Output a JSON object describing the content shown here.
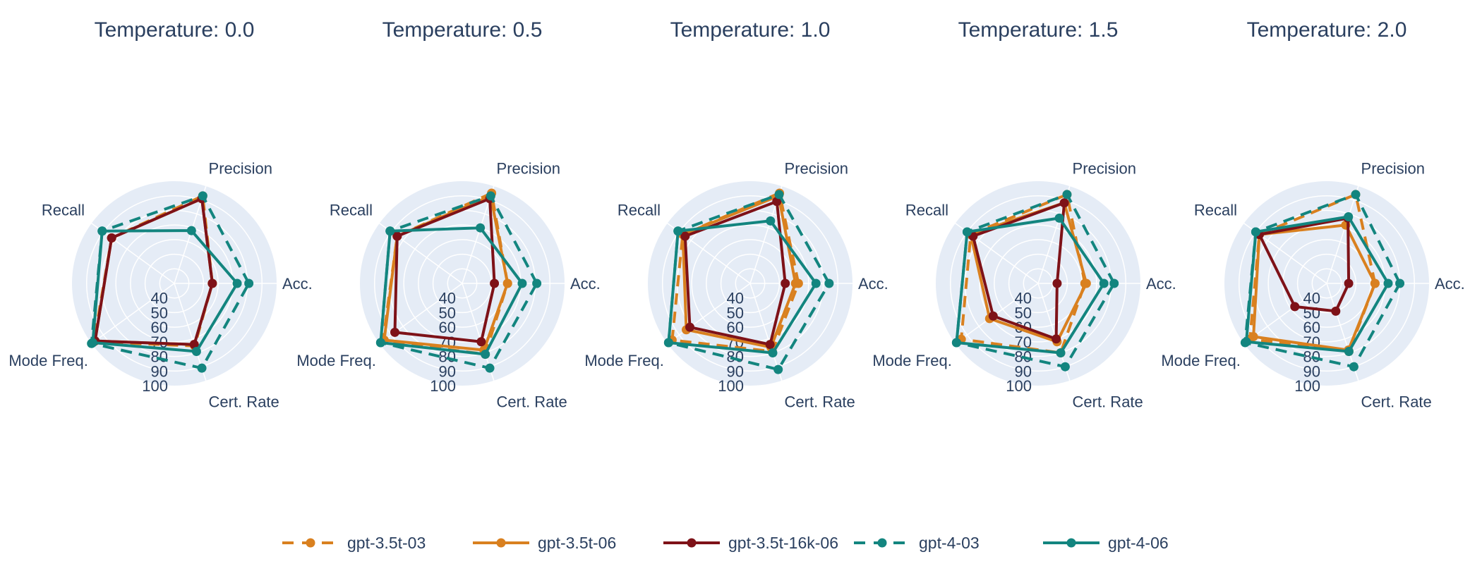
{
  "chart_data": {
    "type": "radar",
    "axes": [
      "Acc.",
      "Precision",
      "Recall",
      "Mode Freq.",
      "Cert. Rate"
    ],
    "radial_range": [
      30,
      100
    ],
    "radial_ticks": [
      "40",
      "50",
      "60",
      "70",
      "80",
      "90",
      "100"
    ],
    "series_styles": [
      {
        "name": "gpt-3.5t-03",
        "color": "#D9801F",
        "dash": true
      },
      {
        "name": "gpt-3.5t-06",
        "color": "#D9801F",
        "dash": false
      },
      {
        "name": "gpt-3.5t-16k-06",
        "color": "#7E1218",
        "dash": false
      },
      {
        "name": "gpt-4-03",
        "color": "#13857F",
        "dash": true
      },
      {
        "name": "gpt-4-06",
        "color": "#13857F",
        "dash": false
      }
    ],
    "panels": [
      {
        "title": "Temperature: 0.0",
        "series": [
          {
            "name": "gpt-3.5t-03",
            "values": [
              56,
              93,
              83,
              98,
              75
            ]
          },
          {
            "name": "gpt-3.5t-06",
            "values": [
              56,
              91,
              83,
              97,
              74
            ]
          },
          {
            "name": "gpt-3.5t-16k-06",
            "values": [
              56,
              91,
              83,
              97,
              74
            ]
          },
          {
            "name": "gpt-4-03",
            "values": [
              81,
              93,
              91,
              100,
              91
            ]
          },
          {
            "name": "gpt-4-06",
            "values": [
              73,
              68,
              91,
              99,
              79
            ]
          }
        ]
      },
      {
        "title": "Temperature: 0.5",
        "series": [
          {
            "name": "gpt-3.5t-03",
            "values": [
              61,
              95,
              85,
              97,
              81
            ]
          },
          {
            "name": "gpt-3.5t-06",
            "values": [
              61,
              93,
              85,
              96,
              78
            ]
          },
          {
            "name": "gpt-3.5t-16k-06",
            "values": [
              52,
              91,
              85,
              87,
              72
            ]
          },
          {
            "name": "gpt-4-03",
            "values": [
              81,
              93,
              91,
              99,
              91
            ]
          },
          {
            "name": "gpt-4-06",
            "values": [
              71,
              70,
              91,
              99,
              81
            ]
          }
        ]
      },
      {
        "title": "Temperature: 1.0",
        "series": [
          {
            "name": "gpt-3.5t-03",
            "values": [
              63,
              95,
              87,
              96,
              79
            ]
          },
          {
            "name": "gpt-3.5t-06",
            "values": [
              61,
              93,
              87,
              84,
              76
            ]
          },
          {
            "name": "gpt-3.5t-16k-06",
            "values": [
              54,
              89,
              85,
              81,
              74
            ]
          },
          {
            "name": "gpt-4-03",
            "values": [
              84,
              94,
              91,
              99,
              92
            ]
          },
          {
            "name": "gpt-4-06",
            "values": [
              75,
              75,
              91,
              99,
              80
            ]
          }
        ]
      },
      {
        "title": "Temperature: 1.5",
        "series": [
          {
            "name": "gpt-3.5t-03",
            "values": [
              62,
              94,
              87,
              95,
              80
            ]
          },
          {
            "name": "gpt-3.5t-06",
            "values": [
              63,
              88,
              87,
              71,
              72
            ]
          },
          {
            "name": "gpt-3.5t-16k-06",
            "values": [
              43,
              88,
              85,
              68,
              70
            ]
          },
          {
            "name": "gpt-4-03",
            "values": [
              82,
              94,
              90,
              99,
              90
            ]
          },
          {
            "name": "gpt-4-06",
            "values": [
              75,
              77,
              90,
              99,
              80
            ]
          }
        ]
      },
      {
        "title": "Temperature: 2.0",
        "series": [
          {
            "name": "gpt-3.5t-03",
            "values": [
              63,
              94,
              87,
              95,
              79
            ]
          },
          {
            "name": "gpt-3.5t-06",
            "values": [
              63,
              72,
              87,
              92,
              78
            ]
          },
          {
            "name": "gpt-3.5t-16k-06",
            "values": [
              45,
              77,
              87,
              57,
              50
            ]
          },
          {
            "name": "gpt-4-03",
            "values": [
              80,
              94,
              90,
              99,
              90
            ]
          },
          {
            "name": "gpt-4-06",
            "values": [
              72,
              78,
              90,
              98,
              79
            ]
          }
        ]
      }
    ],
    "legend": [
      "gpt-3.5t-03",
      "gpt-3.5t-06",
      "gpt-3.5t-16k-06",
      "gpt-4-03",
      "gpt-4-06"
    ]
  }
}
